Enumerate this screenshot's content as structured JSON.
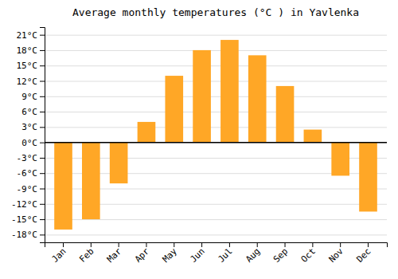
{
  "chart_data": {
    "type": "bar",
    "title": "Average monthly temperatures (°C ) in Yavlenka",
    "categories": [
      "Jan",
      "Feb",
      "Mar",
      "Apr",
      "May",
      "Jun",
      "Jul",
      "Aug",
      "Sep",
      "Oct",
      "Nov",
      "Dec"
    ],
    "values": [
      -17,
      -15,
      -8,
      4,
      13,
      18,
      20,
      17,
      11,
      2.5,
      -6.5,
      -13.5
    ],
    "color": "#FFA726",
    "ylim": [
      -19.5,
      22.5
    ],
    "yticks": [
      {
        "value": -18,
        "label": "-18°C"
      },
      {
        "value": -15,
        "label": "-15°C"
      },
      {
        "value": -12,
        "label": "-12°C"
      },
      {
        "value": -9,
        "label": "-9°C"
      },
      {
        "value": -6,
        "label": "-6°C"
      },
      {
        "value": -3,
        "label": "-3°C"
      },
      {
        "value": 0,
        "label": "0°C"
      },
      {
        "value": 3,
        "label": "3°C"
      },
      {
        "value": 6,
        "label": "6°C"
      },
      {
        "value": 9,
        "label": "9°C"
      },
      {
        "value": 12,
        "label": "12°C"
      },
      {
        "value": 15,
        "label": "15°C"
      },
      {
        "value": 18,
        "label": "18°C"
      },
      {
        "value": 21,
        "label": "21°C"
      }
    ],
    "grid": true
  }
}
